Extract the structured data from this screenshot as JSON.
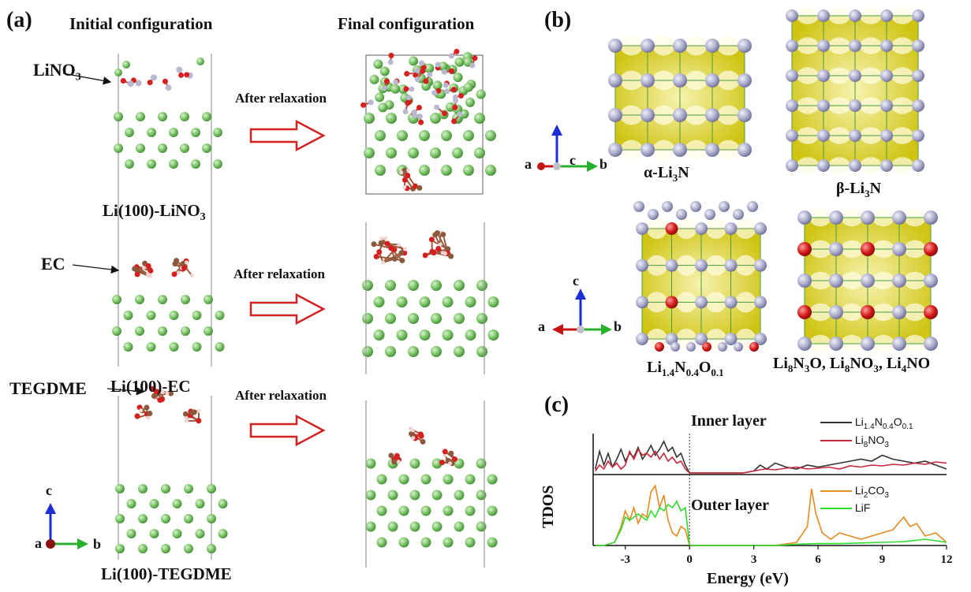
{
  "panels": {
    "a": {
      "letter": "(a)",
      "header_initial": "Initial configuration",
      "header_final": "Final configuration",
      "rows": [
        {
          "molecule": "LiNO",
          "molecule_sub": "3",
          "relax": "After relaxation",
          "label": "Li(100)-LiNO",
          "label_sub": "3"
        },
        {
          "molecule": "EC",
          "relax": "After relaxation",
          "label": "Li(100)-EC"
        },
        {
          "molecule": "TEGDME",
          "relax": "After relaxation",
          "label": "Li(100)-TEGDME"
        }
      ],
      "axes": {
        "c": "c",
        "a": "a",
        "b": "b"
      }
    },
    "b": {
      "letter": "(b)",
      "structures": [
        {
          "name": "α-Li",
          "sub": "3",
          "suffix": "N"
        },
        {
          "name": "β-Li",
          "sub": "3",
          "suffix": "N"
        },
        {
          "pre": "Li",
          "s1": "1.4",
          "m1": "N",
          "s2": "0.4",
          "m2": "O",
          "s3": "0.1"
        },
        {
          "text_a": "Li",
          "a1": "8",
          "text_b": "N",
          "a2": "3",
          "text_c": "O, Li",
          "a3": "8",
          "text_d": "NO",
          "a4": "3",
          "text_e": ", Li",
          "a5": "4",
          "text_f": "NO"
        }
      ],
      "axes": {
        "c": "c",
        "a": "a",
        "b": "b"
      }
    },
    "c": {
      "letter": "(c)",
      "ylabel": "TDOS",
      "xlabel": "Energy (eV)",
      "inner_label": "Inner layer",
      "outer_label": "Outer layer"
    }
  },
  "chart_data": {
    "type": "line",
    "title": "",
    "xlabel": "Energy (eV)",
    "ylabel": "TDOS",
    "xlim": [
      -4.5,
      12
    ],
    "xticks": [
      -3,
      0,
      3,
      6,
      9,
      12
    ],
    "xtick_labels": [
      "-3",
      "0",
      "3",
      "6",
      "9",
      "12"
    ],
    "subplots": [
      {
        "name": "Inner layer",
        "ylim": [
          0,
          1
        ],
        "series": [
          {
            "name": "Li1.4N0.4O0.1",
            "legend_pre": "Li",
            "legend_s1": "1.4",
            "legend_m1": "N",
            "legend_s2": "0.4",
            "legend_m2": "O",
            "legend_s3": "0.1",
            "color": "#333333",
            "x": [
              -4.4,
              -4.2,
              -4.0,
              -3.8,
              -3.6,
              -3.4,
              -3.2,
              -3.0,
              -2.8,
              -2.6,
              -2.4,
              -2.2,
              -2.0,
              -1.8,
              -1.6,
              -1.4,
              -1.2,
              -1.0,
              -0.8,
              -0.6,
              -0.4,
              -0.2,
              0,
              0.5,
              1,
              1.5,
              2,
              2.5,
              3,
              3.3,
              3.6,
              4,
              4.5,
              5,
              5.5,
              6,
              6.5,
              7,
              7.5,
              8,
              8.5,
              9,
              9.5,
              10,
              10.5,
              11,
              11.5,
              12
            ],
            "y": [
              0.1,
              0.55,
              0.2,
              0.5,
              0.15,
              0.35,
              0.6,
              0.3,
              0.5,
              0.4,
              0.65,
              0.35,
              0.5,
              0.7,
              0.45,
              0.6,
              0.8,
              0.55,
              0.65,
              0.4,
              0.5,
              0.2,
              0.0,
              0.0,
              0.0,
              0.0,
              0.0,
              0.0,
              0.05,
              0.2,
              0.1,
              0.25,
              0.15,
              0.1,
              0.2,
              0.15,
              0.2,
              0.25,
              0.3,
              0.35,
              0.3,
              0.45,
              0.35,
              0.3,
              0.25,
              0.3,
              0.2,
              0.1
            ]
          },
          {
            "name": "Li8NO3",
            "legend_pre": "Li",
            "legend_s1": "8",
            "legend_m1": "NO",
            "legend_s2": "3",
            "color": "#c8283a",
            "x": [
              -4.4,
              -4.2,
              -4.0,
              -3.8,
              -3.6,
              -3.4,
              -3.2,
              -3.0,
              -2.8,
              -2.6,
              -2.4,
              -2.2,
              -2.0,
              -1.8,
              -1.6,
              -1.4,
              -1.2,
              -1.0,
              -0.8,
              -0.6,
              -0.4,
              -0.2,
              0,
              0.5,
              1,
              1.5,
              2,
              2.5,
              3,
              3.5,
              4,
              4.5,
              5,
              5.5,
              6,
              6.5,
              7,
              7.5,
              8,
              8.5,
              9,
              9.5,
              10,
              10.5,
              11,
              11.5,
              12
            ],
            "y": [
              0.05,
              0.2,
              0.1,
              0.3,
              0.15,
              0.25,
              0.1,
              0.2,
              0.55,
              0.35,
              0.6,
              0.45,
              0.5,
              0.4,
              0.55,
              0.35,
              0.5,
              0.3,
              0.4,
              0.25,
              0.3,
              0.1,
              0.0,
              0.0,
              0.0,
              0.0,
              0.0,
              0.0,
              0.05,
              0.1,
              0.08,
              0.12,
              0.15,
              0.1,
              0.12,
              0.15,
              0.1,
              0.18,
              0.15,
              0.2,
              0.18,
              0.22,
              0.2,
              0.25,
              0.22,
              0.28,
              0.25
            ]
          }
        ]
      },
      {
        "name": "Outer layer",
        "ylim": [
          0,
          1
        ],
        "series": [
          {
            "name": "Li2CO3",
            "legend_pre": "Li",
            "legend_s1": "2",
            "legend_m1": "CO",
            "legend_s2": "3",
            "color": "#e68a1f",
            "x": [
              -4.4,
              -4.0,
              -3.5,
              -3.2,
              -3.0,
              -2.8,
              -2.6,
              -2.4,
              -2.2,
              -2.0,
              -1.8,
              -1.6,
              -1.4,
              -1.2,
              -1.0,
              -0.8,
              -0.6,
              -0.4,
              -0.2,
              0,
              0.5,
              1,
              2,
              3,
              4,
              5,
              5.5,
              5.7,
              5.9,
              6.2,
              6.6,
              7,
              7.5,
              8,
              8.5,
              9,
              9.5,
              10,
              10.3,
              10.6,
              11,
              11.5,
              12
            ],
            "y": [
              0,
              0,
              0.05,
              0.3,
              0.55,
              0.4,
              0.6,
              0.35,
              0.5,
              0.45,
              0.85,
              0.95,
              0.6,
              0.8,
              0.4,
              0.2,
              0.15,
              0.3,
              0.25,
              0.0,
              0.0,
              0.0,
              0.0,
              0.0,
              0.0,
              0.05,
              0.3,
              0.9,
              0.5,
              0.2,
              0.1,
              0.2,
              0.15,
              0.1,
              0.15,
              0.2,
              0.25,
              0.45,
              0.3,
              0.35,
              0.15,
              0.2,
              0.05
            ]
          },
          {
            "name": "LiF",
            "legend_pre": "LiF",
            "color": "#2ddc2d",
            "x": [
              -4.4,
              -4.0,
              -3.5,
              -3.2,
              -3.0,
              -2.8,
              -2.6,
              -2.4,
              -2.2,
              -2.0,
              -1.8,
              -1.6,
              -1.4,
              -1.2,
              -1.0,
              -0.8,
              -0.6,
              -0.4,
              -0.2,
              0,
              0.5,
              1,
              2,
              3,
              4,
              5,
              6,
              7,
              8,
              9,
              10,
              11,
              12
            ],
            "y": [
              0,
              0,
              0.05,
              0.25,
              0.45,
              0.4,
              0.45,
              0.5,
              0.45,
              0.4,
              0.55,
              0.45,
              0.6,
              0.55,
              0.65,
              0.6,
              0.7,
              0.55,
              0.6,
              0.0,
              0.0,
              0.0,
              0.0,
              0.0,
              0.0,
              0.02,
              0.03,
              0.03,
              0.04,
              0.05,
              0.06,
              0.1,
              0.05
            ]
          }
        ]
      }
    ]
  }
}
